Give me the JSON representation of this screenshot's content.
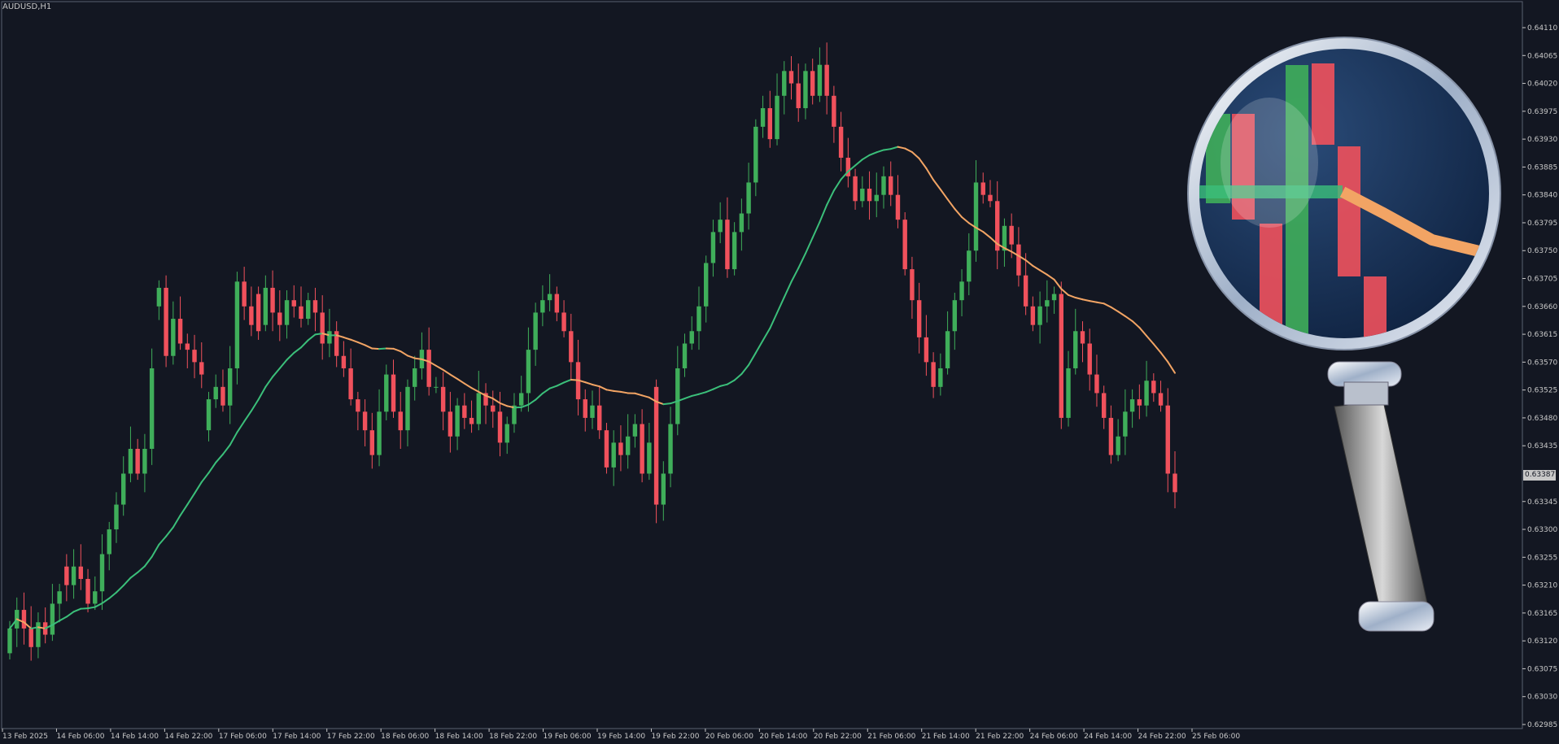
{
  "window": {
    "symbol_title": "AUDUSD,H1",
    "current_price_label": "0.63387"
  },
  "colors": {
    "background": "#131722",
    "frame": "#5a6070",
    "text": "#c8c8c8",
    "bull": "#3fae5a",
    "bear": "#f0515c",
    "ma_up": "#3bbf7a",
    "ma_down": "#f2a464"
  },
  "chart_data": {
    "type": "candlestick",
    "timeframe": "H1",
    "y_ticks": [
      "0.64110",
      "0.64065",
      "0.64020",
      "0.63975",
      "0.63930",
      "0.63885",
      "0.63840",
      "0.63795",
      "0.63750",
      "0.63705",
      "0.63660",
      "0.63615",
      "0.63570",
      "0.63525",
      "0.63480",
      "0.63435",
      "0.63345",
      "0.63300",
      "0.63255",
      "0.63210",
      "0.63165",
      "0.63120",
      "0.63075",
      "0.63030",
      "0.62985"
    ],
    "ylim": [
      0.62985,
      0.6411
    ],
    "x_ticks": [
      "13 Feb 2025",
      "14 Feb 06:00",
      "14 Feb 14:00",
      "14 Feb 22:00",
      "17 Feb 06:00",
      "17 Feb 14:00",
      "17 Feb 22:00",
      "18 Feb 06:00",
      "18 Feb 14:00",
      "18 Feb 22:00",
      "19 Feb 06:00",
      "19 Feb 14:00",
      "19 Feb 22:00",
      "20 Feb 06:00",
      "20 Feb 14:00",
      "20 Feb 22:00",
      "21 Feb 06:00",
      "21 Feb 14:00",
      "21 Feb 22:00",
      "24 Feb 06:00",
      "24 Feb 14:00",
      "24 Feb 22:00",
      "25 Feb 06:00"
    ],
    "last_price": 0.63387,
    "candle_closes": [
      0.6314,
      0.6317,
      0.6314,
      0.6311,
      0.6315,
      0.6313,
      0.6318,
      0.632,
      0.6321,
      0.6324,
      0.6322,
      0.6318,
      0.632,
      0.6326,
      0.633,
      0.6334,
      0.6339,
      0.6343,
      0.6339,
      0.6343,
      0.6356,
      0.6369,
      0.6358,
      0.6364,
      0.636,
      0.6359,
      0.6357,
      0.6355,
      0.6351,
      0.6353,
      0.635,
      0.6356,
      0.637,
      0.6366,
      0.6363,
      0.6362,
      0.6369,
      0.6365,
      0.6363,
      0.6367,
      0.6366,
      0.6364,
      0.6367,
      0.6365,
      0.636,
      0.6362,
      0.6358,
      0.6356,
      0.6351,
      0.6349,
      0.6346,
      0.6342,
      0.6349,
      0.6355,
      0.6349,
      0.6346,
      0.6353,
      0.6356,
      0.6359,
      0.6353,
      0.6353,
      0.6349,
      0.6345,
      0.635,
      0.6348,
      0.6347,
      0.6352,
      0.635,
      0.6349,
      0.6344,
      0.6347,
      0.635,
      0.6352,
      0.6359,
      0.6365,
      0.6367,
      0.6368,
      0.6365,
      0.6362,
      0.6357,
      0.6351,
      0.6348,
      0.635,
      0.6346,
      0.634,
      0.6344,
      0.6342,
      0.6345,
      0.6347,
      0.6339,
      0.6344,
      0.6334,
      0.6339,
      0.6347,
      0.6356,
      0.636,
      0.6362,
      0.6366,
      0.6373,
      0.6378,
      0.638,
      0.6372,
      0.6378,
      0.6381,
      0.6386,
      0.6395,
      0.6398,
      0.6393,
      0.64,
      0.6404,
      0.6402,
      0.6398,
      0.6404,
      0.64,
      0.6405,
      0.64,
      0.6395,
      0.639,
      0.6387,
      0.6383,
      0.6385,
      0.6383,
      0.6384,
      0.6387,
      0.6384,
      0.638,
      0.6372,
      0.6367,
      0.6361,
      0.6357,
      0.6353,
      0.6356,
      0.6362,
      0.6367,
      0.637,
      0.6375,
      0.6386,
      0.6384,
      0.6383,
      0.6375,
      0.6379,
      0.6376,
      0.6371,
      0.6366,
      0.6363,
      0.6366,
      0.6367,
      0.6368,
      0.6348,
      0.6356,
      0.6362,
      0.636,
      0.6355,
      0.6352,
      0.6348,
      0.6342,
      0.6345,
      0.6349,
      0.6351,
      0.635,
      0.6354,
      0.6352,
      0.635,
      0.6339,
      0.6336
    ],
    "candle_opens": [
      0.631,
      0.6314,
      0.6317,
      0.6314,
      0.6311,
      0.6315,
      0.6313,
      0.6318,
      0.6324,
      0.6321,
      0.6324,
      0.6322,
      0.6318,
      0.632,
      0.6326,
      0.633,
      0.6334,
      0.6339,
      0.6343,
      0.6339,
      0.6343,
      0.6366,
      0.6369,
      0.6358,
      0.6364,
      0.636,
      0.6359,
      0.6357,
      0.6346,
      0.6351,
      0.6353,
      0.635,
      0.6356,
      0.637,
      0.6366,
      0.6368,
      0.6363,
      0.6369,
      0.6365,
      0.6363,
      0.6367,
      0.6366,
      0.6364,
      0.6367,
      0.6365,
      0.636,
      0.6362,
      0.6358,
      0.6356,
      0.6351,
      0.6349,
      0.6346,
      0.6342,
      0.6349,
      0.6355,
      0.6349,
      0.6346,
      0.6353,
      0.6356,
      0.6359,
      0.6353,
      0.6353,
      0.6349,
      0.6345,
      0.635,
      0.6348,
      0.6347,
      0.6352,
      0.635,
      0.6349,
      0.6344,
      0.6347,
      0.635,
      0.6352,
      0.6359,
      0.6365,
      0.6367,
      0.6368,
      0.6365,
      0.6362,
      0.6357,
      0.6351,
      0.6348,
      0.635,
      0.6346,
      0.634,
      0.6344,
      0.6342,
      0.6345,
      0.6347,
      0.6339,
      0.6353,
      0.6334,
      0.6339,
      0.6347,
      0.6356,
      0.636,
      0.6362,
      0.6366,
      0.6373,
      0.6378,
      0.638,
      0.6372,
      0.6378,
      0.6381,
      0.6386,
      0.6395,
      0.6398,
      0.6393,
      0.64,
      0.6404,
      0.6402,
      0.6398,
      0.6404,
      0.64,
      0.6405,
      0.64,
      0.6395,
      0.639,
      0.6387,
      0.6383,
      0.6385,
      0.6383,
      0.6384,
      0.6387,
      0.6384,
      0.638,
      0.6372,
      0.6367,
      0.6361,
      0.6357,
      0.6353,
      0.6356,
      0.6362,
      0.6367,
      0.637,
      0.6375,
      0.6386,
      0.6384,
      0.6383,
      0.6375,
      0.6379,
      0.6376,
      0.6371,
      0.6366,
      0.6363,
      0.6366,
      0.6367,
      0.6368,
      0.6348,
      0.6356,
      0.6362,
      0.636,
      0.6355,
      0.6352,
      0.6348,
      0.6342,
      0.6345,
      0.6349,
      0.6351,
      0.635,
      0.6354,
      0.6352,
      0.635,
      0.6339
    ]
  }
}
